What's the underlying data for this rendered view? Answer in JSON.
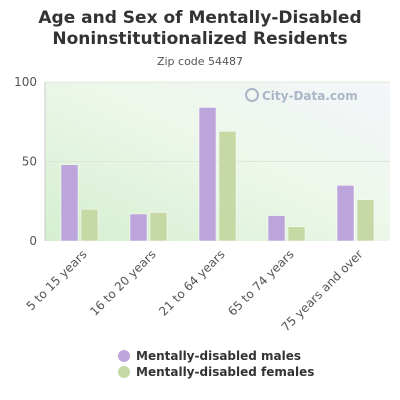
{
  "chart_data": {
    "type": "bar",
    "title_lines": [
      "Age and Sex of Mentally-Disabled",
      "Noninstitutionalized Residents"
    ],
    "subtitle": "Zip code 54487",
    "watermark": "City-Data.com",
    "categories": [
      "5 to 15 years",
      "16 to 20 years",
      "21 to 64 years",
      "65 to 74 years",
      "75 years and over"
    ],
    "series": [
      {
        "name": "Mentally-disabled males",
        "color": "#bca5da",
        "values": [
          48,
          17,
          84,
          16,
          35
        ]
      },
      {
        "name": "Mentally-disabled females",
        "color": "#c6d9a5",
        "values": [
          20,
          18,
          69,
          9,
          26
        ]
      }
    ],
    "ylim": [
      0,
      100
    ],
    "yticks": [
      0,
      50,
      100
    ],
    "xlabel": "",
    "ylabel": "",
    "grid": true,
    "legend_position": "bottom"
  }
}
